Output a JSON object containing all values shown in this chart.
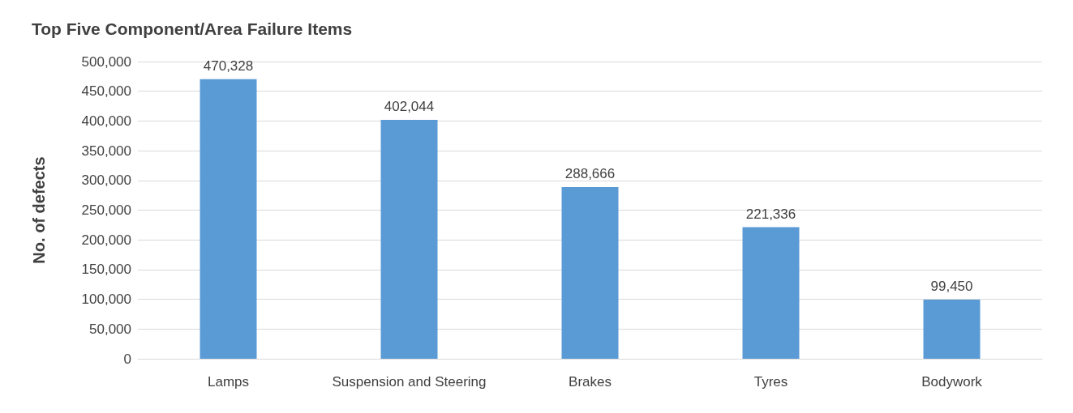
{
  "chart_data": {
    "type": "bar",
    "title": "Top Five Component/Area Failure Items",
    "ylabel": "No. of defects",
    "categories": [
      "Lamps",
      "Suspension and Steering",
      "Brakes",
      "Tyres",
      "Bodywork"
    ],
    "values": [
      470328,
      402044,
      288666,
      221336,
      99450
    ],
    "value_labels": [
      "470,328",
      "402,044",
      "288,666",
      "221,336",
      "99,450"
    ],
    "color": "#5b9bd5",
    "ylim": [
      0,
      500000
    ],
    "yticks": [
      {
        "value": 0,
        "label": "0"
      },
      {
        "value": 50000,
        "label": "50,000"
      },
      {
        "value": 100000,
        "label": "100,000"
      },
      {
        "value": 150000,
        "label": "150,000"
      },
      {
        "value": 200000,
        "label": "200,000"
      },
      {
        "value": 250000,
        "label": "250,000"
      },
      {
        "value": 300000,
        "label": "300,000"
      },
      {
        "value": 350000,
        "label": "350,000"
      },
      {
        "value": 400000,
        "label": "400,000"
      },
      {
        "value": 450000,
        "label": "450,000"
      },
      {
        "value": 500000,
        "label": "500,000"
      }
    ],
    "grid": "y"
  }
}
